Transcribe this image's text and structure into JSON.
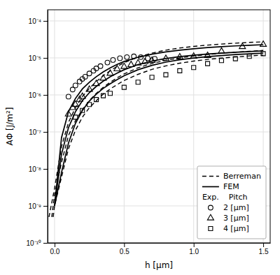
{
  "chart_data": {
    "type": "line",
    "x_label": "h [μm]",
    "y_label": "AΦ [J/m²]",
    "log": "y",
    "grid": true,
    "legend": "lower right",
    "legend_title": "Exp.    Pitch",
    "color": "#000000",
    "xlim": [
      -0.05,
      1.55
    ],
    "ylim": [
      1e-10,
      0.0002
    ],
    "xticks": [
      {
        "value": 0,
        "label": "0.0"
      },
      0.5,
      {
        "value": 1,
        "label": "1.0"
      },
      1.5
    ],
    "yticks": [
      {
        "value": 1e-10,
        "label": "10⁻¹⁰"
      },
      {
        "value": 1e-09,
        "label": "10⁻⁹"
      },
      {
        "value": 1e-08,
        "label": "10⁻⁸"
      },
      {
        "value": 1e-07,
        "label": "10⁻⁷"
      },
      {
        "value": 1e-06,
        "label": "10⁻⁶"
      },
      {
        "value": 1e-05,
        "label": "10⁻⁵"
      },
      {
        "value": 0.0001,
        "label": "10⁻⁴"
      }
    ],
    "series": [
      {
        "name": "Berreman",
        "type": "line",
        "line_style": "dashed",
        "x": [
          -0.04,
          0.0,
          0.05,
          0.1,
          0.15,
          0.2,
          0.25,
          0.3,
          0.35,
          0.4,
          0.45,
          0.5,
          0.6,
          0.7,
          0.8,
          0.9,
          1.0,
          1.1,
          1.2,
          1.3,
          1.4,
          1.5
        ],
        "values": [
          5e-10,
          3e-09,
          4e-08,
          1.8e-07,
          4.5e-07,
          9e-07,
          1.5e-06,
          2.3e-06,
          3.3e-06,
          4.5e-06,
          5.9e-06,
          7.4e-06,
          1.05e-05,
          1.35e-05,
          1.62e-05,
          1.85e-05,
          2.05e-05,
          2.22e-05,
          2.37e-05,
          2.5e-05,
          2.62e-05,
          2.72e-05
        ]
      },
      {
        "name": "Berreman",
        "type": "line",
        "line_style": "dashed",
        "x": [
          -0.02,
          0.0,
          0.05,
          0.1,
          0.15,
          0.2,
          0.25,
          0.3,
          0.35,
          0.4,
          0.45,
          0.5,
          0.6,
          0.7,
          0.8,
          0.9,
          1.0,
          1.1,
          1.2,
          1.3,
          1.4,
          1.5
        ],
        "values": [
          5e-10,
          2e-09,
          1.5e-08,
          8e-08,
          2e-07,
          4e-07,
          7e-07,
          1.1e-06,
          1.6e-06,
          2.2e-06,
          2.9e-06,
          3.7e-06,
          5.4e-06,
          7.1e-06,
          8.6e-06,
          1e-05,
          1.12e-05,
          1.24e-05,
          1.34e-05,
          1.43e-05,
          1.51e-05,
          1.59e-05
        ]
      },
      {
        "name": "Berreman",
        "type": "line",
        "line_style": "dashed",
        "x": [
          -0.01,
          0.0,
          0.05,
          0.1,
          0.15,
          0.2,
          0.25,
          0.3,
          0.35,
          0.4,
          0.45,
          0.5,
          0.6,
          0.7,
          0.8,
          0.9,
          1.0,
          1.1,
          1.2,
          1.3,
          1.4,
          1.5
        ],
        "values": [
          5e-10,
          1e-09,
          6e-09,
          3.5e-08,
          1.1e-07,
          2.5e-07,
          4.5e-07,
          7e-07,
          1.05e-06,
          1.45e-06,
          1.9e-06,
          2.45e-06,
          3.6e-06,
          4.9e-06,
          6.1e-06,
          7.2e-06,
          8.2e-06,
          9.1e-06,
          9.9e-06,
          1.06e-05,
          1.13e-05,
          1.19e-05
        ]
      },
      {
        "name": "FEM",
        "type": "line",
        "line_style": "solid",
        "x": [
          0.0,
          0.05,
          0.1,
          0.15,
          0.2,
          0.25,
          0.3,
          0.35,
          0.4,
          0.45,
          0.5,
          0.6,
          0.7,
          0.8,
          0.9,
          1.0,
          1.1,
          1.2,
          1.3,
          1.4,
          1.5
        ],
        "values": [
          1e-09,
          7e-08,
          3.5e-07,
          8e-07,
          1.45e-06,
          2.2e-06,
          3.1e-06,
          4.2e-06,
          5.4e-06,
          6.7e-06,
          8e-06,
          1.04e-05,
          1.26e-05,
          1.45e-05,
          1.62e-05,
          1.77e-05,
          1.9e-05,
          2.01e-05,
          2.11e-05,
          2.2e-05,
          2.28e-05
        ]
      },
      {
        "name": "FEM",
        "type": "line",
        "line_style": "solid",
        "x": [
          0.0,
          0.05,
          0.1,
          0.15,
          0.2,
          0.25,
          0.3,
          0.35,
          0.4,
          0.45,
          0.5,
          0.6,
          0.7,
          0.8,
          0.9,
          1.0,
          1.1,
          1.2,
          1.3,
          1.4,
          1.5
        ],
        "values": [
          1e-09,
          2.5e-08,
          1.3e-07,
          3.5e-07,
          7e-07,
          1.15e-06,
          1.7e-06,
          2.35e-06,
          3.1e-06,
          3.9e-06,
          4.8e-06,
          6.6e-06,
          8.2e-06,
          9.6e-06,
          1.08e-05,
          1.18e-05,
          1.27e-05,
          1.35e-05,
          1.42e-05,
          1.49e-05,
          1.55e-05
        ]
      },
      {
        "name": "FEM",
        "type": "line",
        "line_style": "solid",
        "x": [
          0.0,
          0.05,
          0.1,
          0.15,
          0.2,
          0.25,
          0.3,
          0.35,
          0.4,
          0.45,
          0.5,
          0.6,
          0.7,
          0.8,
          0.9,
          1.0,
          1.1,
          1.2,
          1.3,
          1.4,
          1.5
        ],
        "values": [
          1e-09,
          8e-09,
          5e-08,
          1.7e-07,
          3.8e-07,
          6.8e-07,
          1.05e-06,
          1.5e-06,
          2e-06,
          2.6e-06,
          3.3e-06,
          4.8e-06,
          6.3e-06,
          7.7e-06,
          8.9e-06,
          9.9e-06,
          1.08e-05,
          1.16e-05,
          1.23e-05,
          1.29e-05,
          1.35e-05
        ]
      },
      {
        "name": "2 [μm]",
        "type": "scatter",
        "marker": "circle",
        "x": [
          0.1,
          0.13,
          0.15,
          0.18,
          0.2,
          0.22,
          0.25,
          0.28,
          0.3,
          0.33,
          0.38,
          0.42,
          0.47,
          0.52,
          0.57,
          0.62,
          0.67,
          0.72
        ],
        "values": [
          9e-07,
          1.4e-06,
          1.8e-06,
          2.3e-06,
          2.7e-06,
          3.1e-06,
          3.8e-06,
          4.5e-06,
          5.2e-06,
          6e-06,
          7.5e-06,
          8.8e-06,
          9.8e-06,
          1.05e-05,
          1.1e-05,
          1.05e-05,
          9.8e-06,
          9.5e-06
        ]
      },
      {
        "name": "3 [μm]",
        "type": "scatter",
        "marker": "triangle",
        "x": [
          0.1,
          0.13,
          0.15,
          0.18,
          0.2,
          0.25,
          0.3,
          0.35,
          0.4,
          0.45,
          0.5,
          0.55,
          0.6,
          0.65,
          0.7,
          0.8,
          0.9,
          1.0,
          1.1,
          1.2,
          1.35,
          1.5
        ],
        "values": [
          3e-07,
          4.5e-07,
          5.5e-07,
          7.5e-07,
          9e-07,
          1.4e-06,
          2e-06,
          2.8e-06,
          3.8e-06,
          5e-06,
          5.8e-06,
          6.5e-06,
          7.2e-06,
          7.8e-06,
          8.5e-06,
          9.5e-06,
          1.05e-05,
          1.1e-05,
          1.15e-05,
          1.5e-05,
          2e-05,
          2.3e-05
        ]
      },
      {
        "name": "4 [μm]",
        "type": "scatter",
        "marker": "square",
        "x": [
          0.15,
          0.2,
          0.25,
          0.3,
          0.35,
          0.4,
          0.5,
          0.6,
          0.7,
          0.8,
          0.9,
          1.0,
          1.1,
          1.2,
          1.3,
          1.4,
          1.5
        ],
        "values": [
          2.5e-07,
          3.8e-07,
          5.5e-07,
          7.5e-07,
          9.5e-07,
          1.1e-06,
          1.6e-06,
          2.2e-06,
          3e-06,
          3.5e-06,
          4.5e-06,
          5.5e-06,
          7e-06,
          8.5e-06,
          9.5e-06,
          1.1e-05,
          1.3e-05
        ]
      }
    ]
  }
}
